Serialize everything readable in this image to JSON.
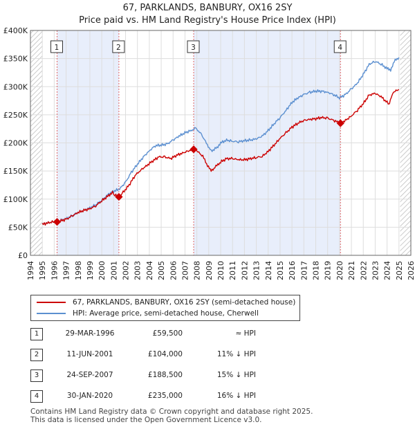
{
  "chart_data": {
    "type": "line",
    "title": "67, PARKLANDS, BANBURY, OX16 2SY",
    "subtitle": "Price paid vs. HM Land Registry's House Price Index (HPI)",
    "xlim": [
      1994,
      2026
    ],
    "ylim": [
      0,
      400000
    ],
    "x_ticks": [
      "1994",
      "1995",
      "1996",
      "1997",
      "1998",
      "1999",
      "2000",
      "2001",
      "2002",
      "2003",
      "2004",
      "2005",
      "2006",
      "2007",
      "2008",
      "2009",
      "2010",
      "2011",
      "2012",
      "2013",
      "2014",
      "2015",
      "2016",
      "2017",
      "2018",
      "2019",
      "2020",
      "2021",
      "2022",
      "2023",
      "2024",
      "2025",
      "2026"
    ],
    "y_ticks": [
      {
        "value": 0,
        "label": "£0"
      },
      {
        "value": 50000,
        "label": "£50K"
      },
      {
        "value": 100000,
        "label": "£100K"
      },
      {
        "value": 150000,
        "label": "£150K"
      },
      {
        "value": 200000,
        "label": "£200K"
      },
      {
        "value": 250000,
        "label": "£250K"
      },
      {
        "value": 300000,
        "label": "£300K"
      },
      {
        "value": 350000,
        "label": "£350K"
      },
      {
        "value": 400000,
        "label": "£400K"
      }
    ],
    "series": [
      {
        "name": "67, PARKLANDS, BANBURY, OX16 2SY (semi-detached house)",
        "color": "#cc0000",
        "points": [
          [
            1995.0,
            55000
          ],
          [
            1995.5,
            58000
          ],
          [
            1996.0,
            60000
          ],
          [
            1996.24,
            59500
          ],
          [
            1996.5,
            61000
          ],
          [
            1997.0,
            64000
          ],
          [
            1997.5,
            70000
          ],
          [
            1998.0,
            76000
          ],
          [
            1998.5,
            80000
          ],
          [
            1999.0,
            83000
          ],
          [
            1999.5,
            88000
          ],
          [
            2000.0,
            97000
          ],
          [
            2000.5,
            105000
          ],
          [
            2000.9,
            112000
          ],
          [
            2001.1,
            107000
          ],
          [
            2001.44,
            104000
          ],
          [
            2001.8,
            112000
          ],
          [
            2002.3,
            125000
          ],
          [
            2002.8,
            142000
          ],
          [
            2003.3,
            152000
          ],
          [
            2003.8,
            160000
          ],
          [
            2004.3,
            168000
          ],
          [
            2004.8,
            175000
          ],
          [
            2005.3,
            175000
          ],
          [
            2005.8,
            172000
          ],
          [
            2006.3,
            178000
          ],
          [
            2006.8,
            182000
          ],
          [
            2007.3,
            186000
          ],
          [
            2007.73,
            188500
          ],
          [
            2008.0,
            186000
          ],
          [
            2008.5,
            176000
          ],
          [
            2008.9,
            160000
          ],
          [
            2009.2,
            150000
          ],
          [
            2009.6,
            158000
          ],
          [
            2010.0,
            166000
          ],
          [
            2010.5,
            172000
          ],
          [
            2011.0,
            172000
          ],
          [
            2011.5,
            170000
          ],
          [
            2012.0,
            170000
          ],
          [
            2012.5,
            172000
          ],
          [
            2013.0,
            174000
          ],
          [
            2013.5,
            176000
          ],
          [
            2014.0,
            185000
          ],
          [
            2014.5,
            196000
          ],
          [
            2015.0,
            208000
          ],
          [
            2015.5,
            218000
          ],
          [
            2016.0,
            228000
          ],
          [
            2016.5,
            235000
          ],
          [
            2017.0,
            240000
          ],
          [
            2017.5,
            242000
          ],
          [
            2018.0,
            243000
          ],
          [
            2018.5,
            245000
          ],
          [
            2019.0,
            244000
          ],
          [
            2019.5,
            240000
          ],
          [
            2020.08,
            235000
          ],
          [
            2020.5,
            240000
          ],
          [
            2021.0,
            248000
          ],
          [
            2021.5,
            258000
          ],
          [
            2022.0,
            270000
          ],
          [
            2022.5,
            285000
          ],
          [
            2023.0,
            288000
          ],
          [
            2023.5,
            282000
          ],
          [
            2024.0,
            272000
          ],
          [
            2024.2,
            270000
          ],
          [
            2024.5,
            290000
          ],
          [
            2025.0,
            295000
          ]
        ]
      },
      {
        "name": "HPI: Average price, semi-detached house, Cherwell",
        "color": "#5b8fd0",
        "points": [
          [
            1995.0,
            55000
          ],
          [
            1995.5,
            58000
          ],
          [
            1996.0,
            60000
          ],
          [
            1996.5,
            62000
          ],
          [
            1997.0,
            65000
          ],
          [
            1997.5,
            70000
          ],
          [
            1998.0,
            76000
          ],
          [
            1998.5,
            80000
          ],
          [
            1999.0,
            84000
          ],
          [
            1999.5,
            90000
          ],
          [
            2000.0,
            98000
          ],
          [
            2000.5,
            108000
          ],
          [
            2001.0,
            114000
          ],
          [
            2001.5,
            118000
          ],
          [
            2002.0,
            130000
          ],
          [
            2002.5,
            148000
          ],
          [
            2003.0,
            162000
          ],
          [
            2003.5,
            175000
          ],
          [
            2004.0,
            186000
          ],
          [
            2004.5,
            195000
          ],
          [
            2005.0,
            196000
          ],
          [
            2005.5,
            198000
          ],
          [
            2006.0,
            205000
          ],
          [
            2006.5,
            212000
          ],
          [
            2007.0,
            218000
          ],
          [
            2007.5,
            222000
          ],
          [
            2007.9,
            226000
          ],
          [
            2008.3,
            218000
          ],
          [
            2008.8,
            200000
          ],
          [
            2009.2,
            185000
          ],
          [
            2009.7,
            192000
          ],
          [
            2010.0,
            200000
          ],
          [
            2010.5,
            205000
          ],
          [
            2011.0,
            203000
          ],
          [
            2011.5,
            202000
          ],
          [
            2012.0,
            204000
          ],
          [
            2012.5,
            205000
          ],
          [
            2013.0,
            207000
          ],
          [
            2013.5,
            212000
          ],
          [
            2014.0,
            222000
          ],
          [
            2014.5,
            234000
          ],
          [
            2015.0,
            245000
          ],
          [
            2015.5,
            258000
          ],
          [
            2016.0,
            272000
          ],
          [
            2016.5,
            280000
          ],
          [
            2017.0,
            286000
          ],
          [
            2017.5,
            290000
          ],
          [
            2018.0,
            292000
          ],
          [
            2018.5,
            292000
          ],
          [
            2019.0,
            290000
          ],
          [
            2019.5,
            286000
          ],
          [
            2020.0,
            280000
          ],
          [
            2020.5,
            286000
          ],
          [
            2021.0,
            296000
          ],
          [
            2021.5,
            306000
          ],
          [
            2022.0,
            322000
          ],
          [
            2022.5,
            340000
          ],
          [
            2023.0,
            345000
          ],
          [
            2023.5,
            340000
          ],
          [
            2024.0,
            332000
          ],
          [
            2024.3,
            330000
          ],
          [
            2024.6,
            345000
          ],
          [
            2025.0,
            352000
          ]
        ]
      }
    ],
    "sale_markers": [
      {
        "label": "1",
        "x": 1996.24,
        "y": 59500
      },
      {
        "label": "2",
        "x": 2001.44,
        "y": 104000
      },
      {
        "label": "3",
        "x": 2007.73,
        "y": 188500
      },
      {
        "label": "4",
        "x": 2020.08,
        "y": 235000
      }
    ],
    "shaded_periods": [
      [
        1996.24,
        2001.44
      ],
      [
        2007.73,
        2020.08
      ]
    ],
    "hatched_periods": [
      [
        1994,
        1995.0
      ],
      [
        2025.1,
        2026
      ]
    ]
  },
  "legend": {
    "items": [
      {
        "label": "67, PARKLANDS, BANBURY, OX16 2SY (semi-detached house)",
        "color": "#cc0000"
      },
      {
        "label": "HPI: Average price, semi-detached house, Cherwell",
        "color": "#5b8fd0"
      }
    ]
  },
  "transactions": [
    {
      "num": "1",
      "date": "29-MAR-1996",
      "price": "£59,500",
      "hpi": "≈ HPI"
    },
    {
      "num": "2",
      "date": "11-JUN-2001",
      "price": "£104,000",
      "hpi": "11% ↓ HPI"
    },
    {
      "num": "3",
      "date": "24-SEP-2007",
      "price": "£188,500",
      "hpi": "15% ↓ HPI"
    },
    {
      "num": "4",
      "date": "30-JAN-2020",
      "price": "£235,000",
      "hpi": "16% ↓ HPI"
    }
  ],
  "footer": {
    "line1": "Contains HM Land Registry data © Crown copyright and database right 2025.",
    "line2": "This data is licensed under the Open Government Licence v3.0."
  }
}
